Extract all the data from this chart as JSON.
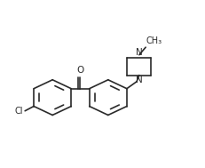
{
  "bg_color": "#ffffff",
  "line_color": "#2a2a2a",
  "line_width": 1.2,
  "figsize": [
    2.32,
    1.89
  ],
  "dpi": 100,
  "ch3_label": "CH₃",
  "n_label": "N",
  "o_label": "O",
  "cl_label": "Cl",
  "font_size_atom": 7.0
}
